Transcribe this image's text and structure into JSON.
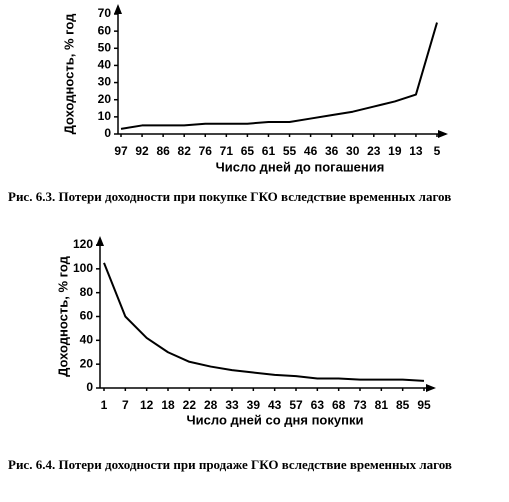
{
  "chart_data": [
    {
      "type": "line",
      "y_label": "Доходность, % год",
      "x_label": "Число дней до погашения",
      "caption": "Рис. 6.3. Потери доходности при покупке ГКО вследствие временных лагов",
      "categories": [
        "97",
        "92",
        "86",
        "82",
        "76",
        "71",
        "65",
        "61",
        "55",
        "46",
        "36",
        "30",
        "23",
        "19",
        "13",
        "5"
      ],
      "values": [
        3,
        5,
        5,
        5,
        6,
        6,
        6,
        7,
        7,
        9,
        11,
        13,
        16,
        19,
        23,
        65
      ],
      "color": "#000000",
      "ylim": [
        0,
        70
      ],
      "yticks": [
        0,
        10,
        20,
        30,
        40,
        50,
        60,
        70
      ]
    },
    {
      "type": "line",
      "y_label": "Доходность, % год",
      "x_label": "Число дней со дня покупки",
      "caption": "Рис. 6.4. Потери доходности при продаже ГКО вследствие временных лагов",
      "categories": [
        "1",
        "7",
        "12",
        "18",
        "22",
        "28",
        "33",
        "39",
        "43",
        "57",
        "63",
        "68",
        "73",
        "81",
        "85",
        "95"
      ],
      "values": [
        105,
        60,
        42,
        30,
        22,
        18,
        15,
        13,
        11,
        10,
        8,
        8,
        7,
        7,
        7,
        6
      ],
      "color": "#000000",
      "ylim": [
        0,
        120
      ],
      "yticks": [
        0,
        20,
        40,
        60,
        80,
        100,
        120
      ]
    }
  ]
}
